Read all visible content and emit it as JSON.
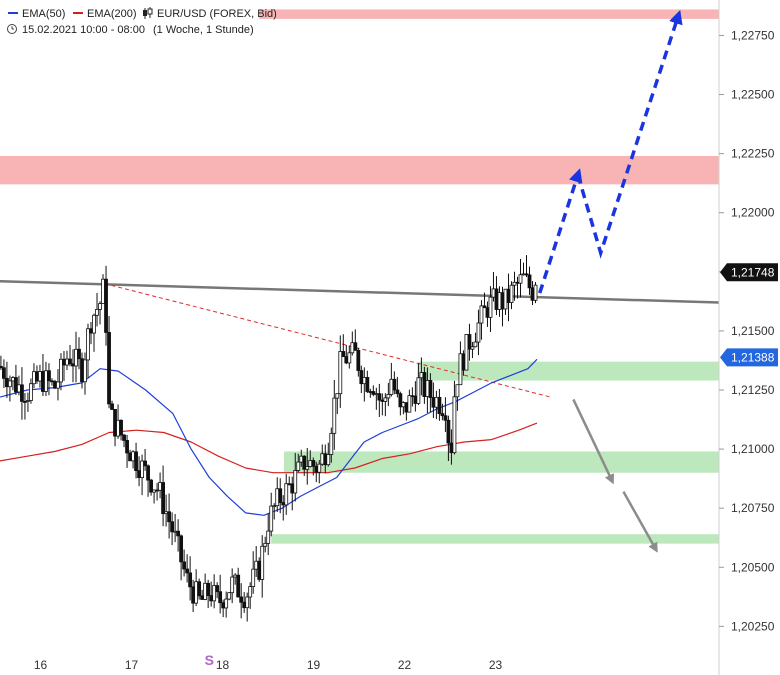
{
  "header": {
    "ema50_label": "EMA(50)",
    "ema200_label": "EMA(200)",
    "instrument": "EUR/USD (FOREX, Bid)",
    "timestamp": "15.02.2021 10:00 - 08:00",
    "period": "(1 Woche, 1 Stunde)",
    "ema50_color": "#1f3fd6",
    "ema200_color": "#d62020"
  },
  "chart_data": {
    "type": "line",
    "ylim": [
      1.2015,
      1.229
    ],
    "y_ticks": [
      "1,20250",
      "1,20500",
      "1,20750",
      "1,21000",
      "1,21250",
      "1,21500",
      "1,21750",
      "1,22000",
      "1,22250",
      "1,22500",
      "1,22750"
    ],
    "y_tick_values": [
      1.2025,
      1.205,
      1.2075,
      1.21,
      1.2125,
      1.215,
      1.2175,
      1.22,
      1.2225,
      1.225,
      1.2275
    ],
    "x_labels": [
      "16",
      "17",
      "18",
      "19",
      "22",
      "23"
    ],
    "x_label_positions": [
      0.5,
      1.5,
      2.5,
      3.5,
      4.5,
      5.5
    ],
    "x_range": [
      0,
      7.9
    ],
    "price_badges": [
      {
        "label": "1,21748",
        "value": 1.21748,
        "color": "#111111"
      },
      {
        "label": "1,21388",
        "value": 1.21388,
        "color": "#2266e0"
      }
    ],
    "marker": {
      "label": "S",
      "x": 2.3
    },
    "zones": [
      {
        "x0": 2.85,
        "x1": 7.9,
        "y0": 1.2282,
        "y1": 1.2286,
        "color": "#f8b4b4"
      },
      {
        "x0": 0,
        "x1": 7.9,
        "y0": 1.2212,
        "y1": 1.2224,
        "color": "#f8b4b4"
      },
      {
        "x0": 4.6,
        "x1": 7.9,
        "y0": 1.2129,
        "y1": 1.2137,
        "color": "#bde8bd"
      },
      {
        "x0": 3.12,
        "x1": 7.9,
        "y0": 1.209,
        "y1": 1.2099,
        "color": "#bde8bd"
      },
      {
        "x0": 2.98,
        "x1": 7.9,
        "y0": 1.206,
        "y1": 1.2064,
        "color": "#bde8bd"
      }
    ],
    "resistance_line": {
      "x0": 0,
      "y0": 1.2171,
      "x1": 7.9,
      "y1": 1.2162,
      "color": "#777777"
    },
    "trend_line": {
      "x0": 1.15,
      "y0": 1.217,
      "x1": 6.05,
      "y1": 1.2122,
      "color": "#e02a2a"
    },
    "ema50": {
      "name": "EMA(50)",
      "x": [
        0,
        0.3,
        0.6,
        0.9,
        1.1,
        1.3,
        1.6,
        1.9,
        2.1,
        2.3,
        2.5,
        2.7,
        2.9,
        3.1,
        3.3,
        3.5,
        3.7,
        3.9,
        4.0,
        4.2,
        4.4,
        4.6,
        4.8,
        5.0,
        5.2,
        5.4,
        5.6,
        5.8,
        5.9
      ],
      "values": [
        1.2122,
        1.2125,
        1.2126,
        1.2128,
        1.2134,
        1.2133,
        1.2125,
        1.2115,
        1.21,
        1.2088,
        1.208,
        1.2073,
        1.2072,
        1.2075,
        1.208,
        1.2084,
        1.2088,
        1.2098,
        1.2103,
        1.2107,
        1.211,
        1.2113,
        1.2117,
        1.212,
        1.2124,
        1.2128,
        1.2131,
        1.2134,
        1.2138
      ]
    },
    "ema200": {
      "name": "EMA(200)",
      "x": [
        0,
        0.3,
        0.6,
        0.9,
        1.2,
        1.5,
        1.8,
        2.1,
        2.4,
        2.7,
        3.0,
        3.3,
        3.6,
        3.9,
        4.2,
        4.5,
        4.8,
        5.1,
        5.4,
        5.7,
        5.9
      ],
      "values": [
        1.2095,
        1.2097,
        1.2099,
        1.2102,
        1.2107,
        1.2108,
        1.2107,
        1.2103,
        1.2097,
        1.2092,
        1.209,
        1.209,
        1.209,
        1.2092,
        1.2096,
        1.2098,
        1.2101,
        1.2103,
        1.2104,
        1.2108,
        1.2111
      ]
    },
    "price_path": {
      "x": [
        0,
        0.15,
        0.3,
        0.45,
        0.6,
        0.75,
        0.9,
        1.0,
        1.1,
        1.15,
        1.2,
        1.3,
        1.45,
        1.6,
        1.75,
        1.9,
        2.05,
        2.2,
        2.3,
        2.4,
        2.55,
        2.7,
        2.85,
        2.95,
        3.05,
        3.2,
        3.35,
        3.5,
        3.6,
        3.75,
        3.9,
        4.0,
        4.1,
        4.2,
        4.3,
        4.4,
        4.5,
        4.6,
        4.75,
        4.9,
        4.95,
        5.0,
        5.05,
        5.15,
        5.25,
        5.35,
        5.45,
        5.55,
        5.65,
        5.75,
        5.85,
        5.9
      ],
      "values": [
        1.2135,
        1.2128,
        1.2124,
        1.213,
        1.2126,
        1.214,
        1.2134,
        1.2155,
        1.2162,
        1.217,
        1.2115,
        1.2108,
        1.2098,
        1.209,
        1.2082,
        1.2065,
        1.2045,
        1.2035,
        1.204,
        1.2035,
        1.2043,
        1.2038,
        1.205,
        1.207,
        1.2078,
        1.2085,
        1.2095,
        1.2092,
        1.2102,
        1.2138,
        1.214,
        1.213,
        1.2128,
        1.2118,
        1.213,
        1.2115,
        1.212,
        1.2128,
        1.2122,
        1.2118,
        1.2095,
        1.2128,
        1.2135,
        1.2145,
        1.2152,
        1.216,
        1.2163,
        1.2162,
        1.2168,
        1.2172,
        1.2167,
        1.2175
      ]
    },
    "projection_up": {
      "points_x": [
        5.93,
        6.35,
        6.6,
        7.45
      ],
      "points_y": [
        1.2166,
        1.2216,
        1.2183,
        1.2283
      ],
      "color": "#1a35e0"
    },
    "projection_down": [
      {
        "x0": 6.3,
        "y0": 1.2121,
        "x1": 6.72,
        "y1": 1.2087,
        "color": "#8c8c8c"
      },
      {
        "x0": 6.85,
        "y0": 1.2082,
        "x1": 7.2,
        "y1": 1.2058,
        "color": "#8c8c8c"
      }
    ]
  }
}
